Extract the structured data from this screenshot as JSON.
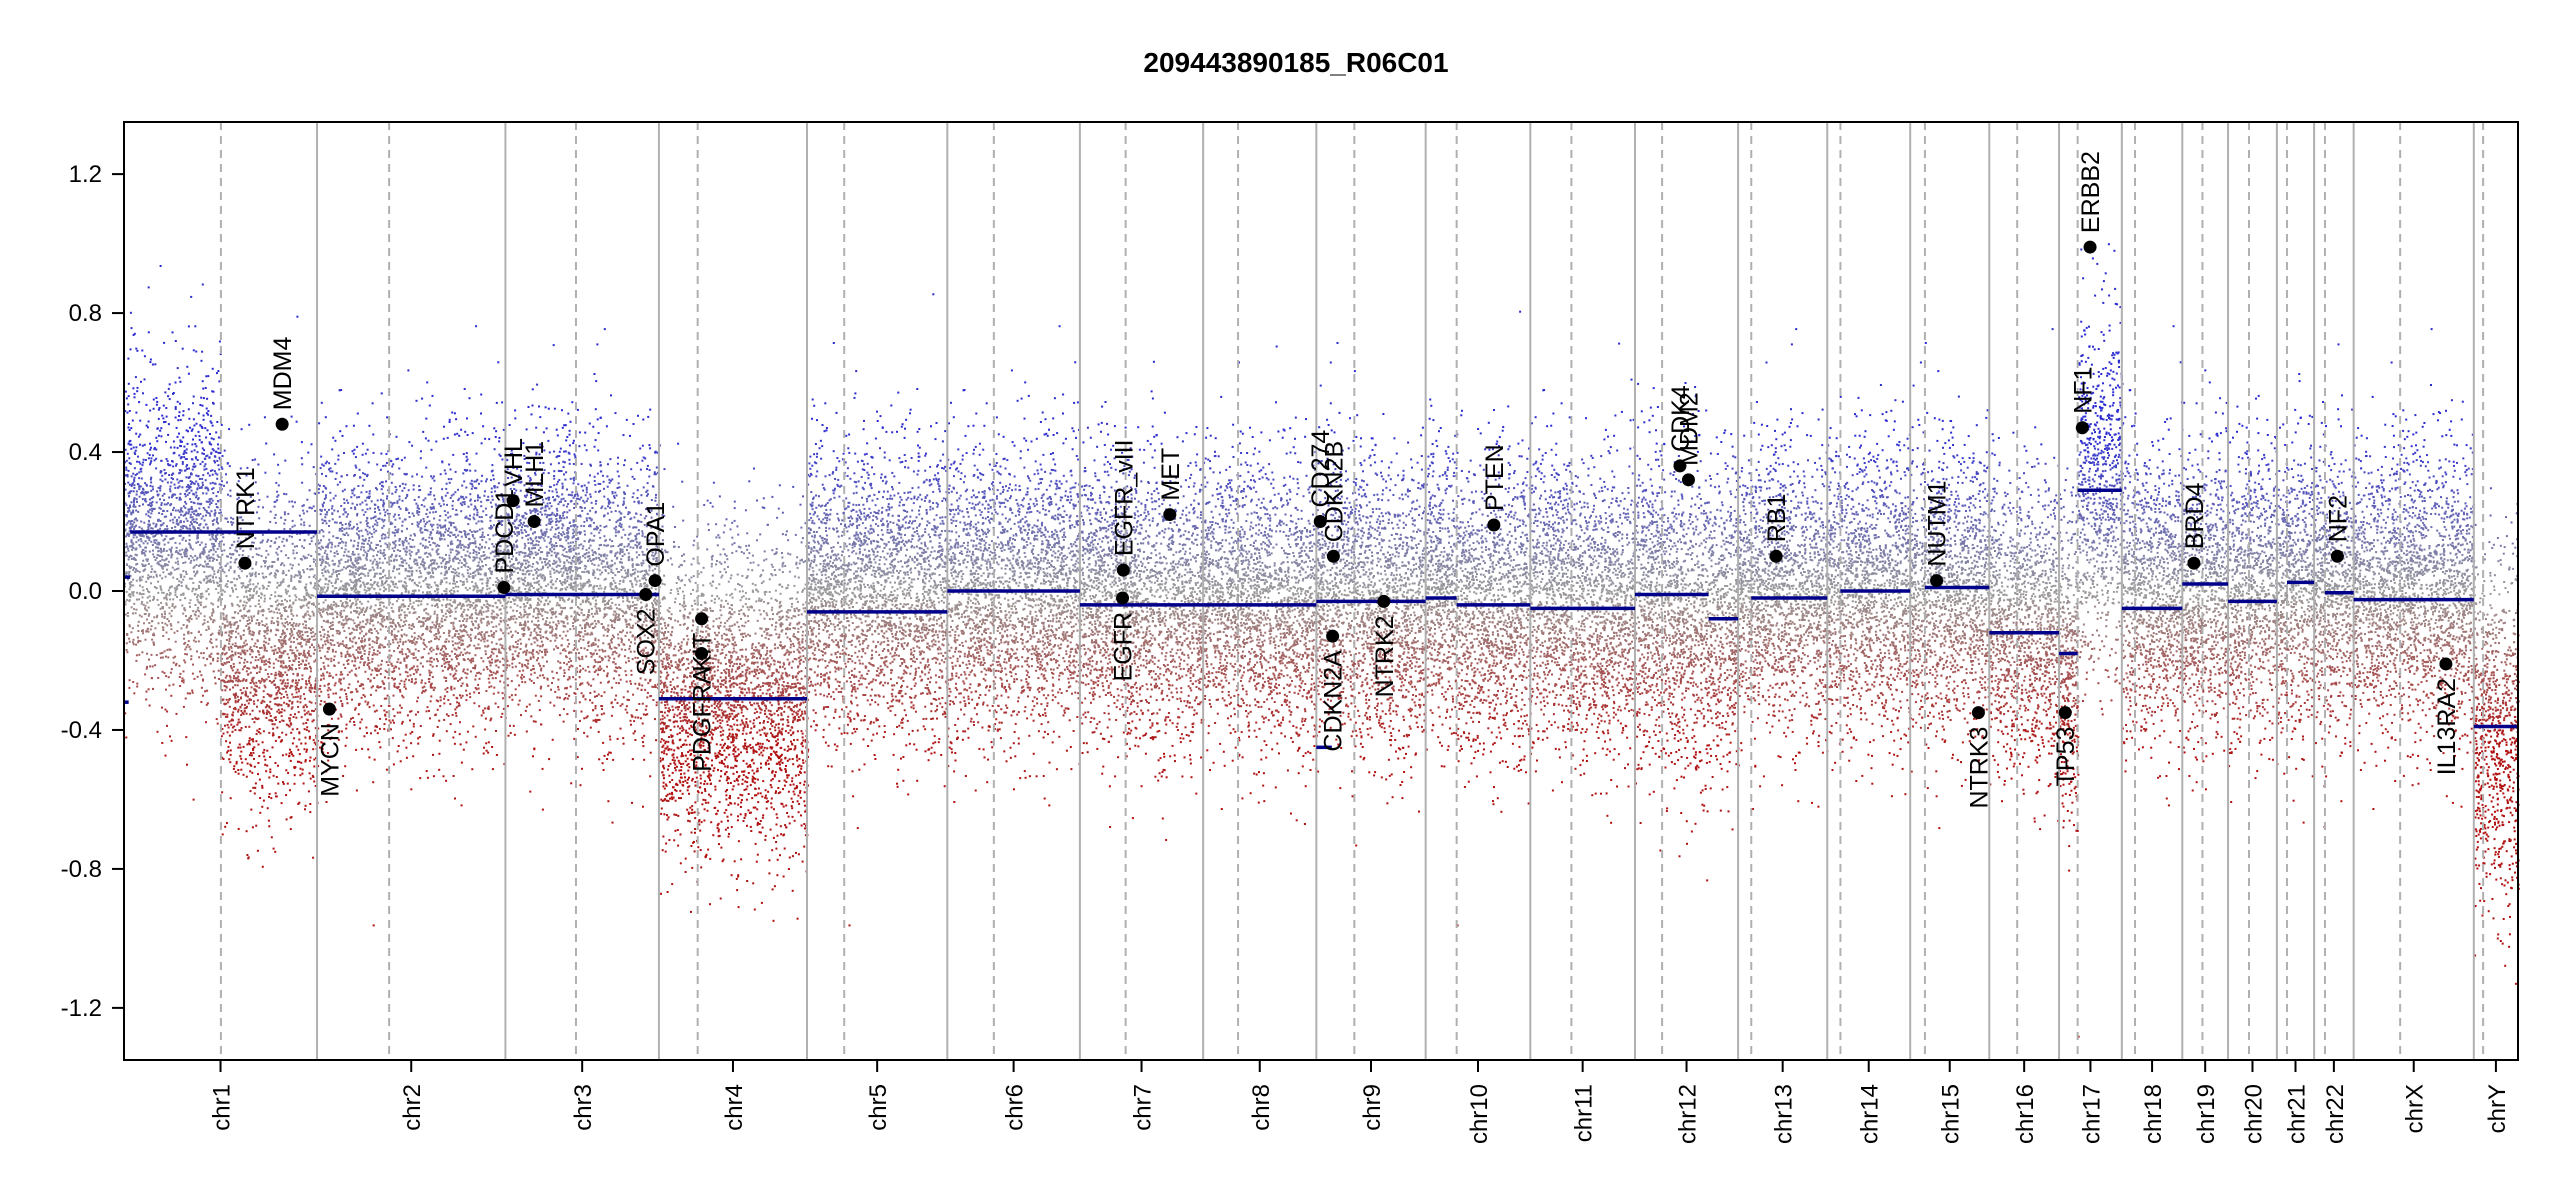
{
  "chart_data": {
    "type": "scatter",
    "title": "209443890185_R06C01",
    "xlabel": "",
    "ylabel": "",
    "ylim": [
      -1.35,
      1.35
    ],
    "yticks": [
      -1.2,
      -0.8,
      -0.4,
      0.0,
      0.4,
      0.8,
      1.2
    ],
    "ytick_labels": [
      "-1.2",
      "-0.8",
      "-0.4",
      "0.0",
      "0.4",
      "0.8",
      "1.2"
    ],
    "grid": false,
    "legend": "none",
    "colors": {
      "gain": "#2b2bd0",
      "loss": "#b01010",
      "neutral": "#9a9a9a",
      "segment": "#00008b",
      "gene": "#000000",
      "boundary": "#b0b0b0",
      "centromere": "#b0b0b0"
    },
    "chromosomes": [
      {
        "name": "chr1",
        "length": 249,
        "centromere": 125,
        "segments": [
          {
            "start": 0,
            "end": 6,
            "value": -0.32
          },
          {
            "start": 1,
            "end": 8,
            "value": 0.04
          },
          {
            "start": 8,
            "end": 249,
            "value": 0.17
          }
        ],
        "base": [
          0.15,
          -0.15
        ],
        "spread": 0.22
      },
      {
        "name": "chr2",
        "length": 243,
        "centromere": 93,
        "segments": [
          {
            "start": 0,
            "end": 243,
            "value": -0.015
          }
        ],
        "base": [
          0.0,
          0.0
        ],
        "spread": 0.2
      },
      {
        "name": "chr3",
        "length": 198,
        "centromere": 91,
        "segments": [
          {
            "start": 0,
            "end": 198,
            "value": -0.01
          }
        ],
        "base": [
          0.05,
          0.0
        ],
        "spread": 0.2
      },
      {
        "name": "chr4",
        "length": 191,
        "centromere": 50,
        "segments": [
          {
            "start": 0,
            "end": 191,
            "value": -0.31
          }
        ],
        "base": [
          -0.3,
          -0.3
        ],
        "spread": 0.22
      },
      {
        "name": "chr5",
        "length": 181,
        "centromere": 48,
        "segments": [
          {
            "start": 0,
            "end": 181,
            "value": -0.06
          }
        ],
        "base": [
          0.0,
          0.0
        ],
        "spread": 0.2
      },
      {
        "name": "chr6",
        "length": 171,
        "centromere": 60,
        "segments": [
          {
            "start": 0,
            "end": 171,
            "value": 0.0
          }
        ],
        "base": [
          0.0,
          0.0
        ],
        "spread": 0.2
      },
      {
        "name": "chr7",
        "length": 159,
        "centromere": 59,
        "segments": [
          {
            "start": 0,
            "end": 159,
            "value": -0.04
          }
        ],
        "base": [
          0.0,
          -0.05
        ],
        "spread": 0.2
      },
      {
        "name": "chr8",
        "length": 146,
        "centromere": 45,
        "segments": [
          {
            "start": 0,
            "end": 146,
            "value": -0.04
          }
        ],
        "base": [
          0.0,
          -0.05
        ],
        "spread": 0.2
      },
      {
        "name": "chr9",
        "length": 141,
        "centromere": 49,
        "segments": [
          {
            "start": 0,
            "end": 20,
            "value": -0.45
          },
          {
            "start": 0,
            "end": 141,
            "value": -0.03
          }
        ],
        "base": [
          0.0,
          -0.05
        ],
        "spread": 0.2
      },
      {
        "name": "chr10",
        "length": 135,
        "centromere": 40,
        "segments": [
          {
            "start": 0,
            "end": 40,
            "value": -0.02
          },
          {
            "start": 40,
            "end": 135,
            "value": -0.04
          }
        ],
        "base": [
          0.0,
          -0.05
        ],
        "spread": 0.2
      },
      {
        "name": "chr11",
        "length": 135,
        "centromere": 53,
        "segments": [
          {
            "start": 0,
            "end": 135,
            "value": -0.05
          }
        ],
        "base": [
          0.0,
          -0.05
        ],
        "spread": 0.2
      },
      {
        "name": "chr12",
        "length": 133,
        "centromere": 35,
        "segments": [
          {
            "start": 0,
            "end": 95,
            "value": -0.01
          },
          {
            "start": 95,
            "end": 133,
            "value": -0.08
          }
        ],
        "base": [
          0.0,
          -0.1
        ],
        "spread": 0.22
      },
      {
        "name": "chr13",
        "length": 115,
        "centromere": 17,
        "segments": [
          {
            "start": 17,
            "end": 115,
            "value": -0.02
          }
        ],
        "base": [
          0.0,
          0.0
        ],
        "spread": 0.2
      },
      {
        "name": "chr14",
        "length": 107,
        "centromere": 17,
        "segments": [
          {
            "start": 17,
            "end": 107,
            "value": 0.0
          }
        ],
        "base": [
          0.0,
          0.0
        ],
        "spread": 0.2
      },
      {
        "name": "chr15",
        "length": 102,
        "centromere": 19,
        "segments": [
          {
            "start": 19,
            "end": 102,
            "value": 0.01
          }
        ],
        "base": [
          0.0,
          0.0
        ],
        "spread": 0.2
      },
      {
        "name": "chr16",
        "length": 90,
        "centromere": 36,
        "segments": [
          {
            "start": 0,
            "end": 90,
            "value": -0.12
          }
        ],
        "base": [
          -0.1,
          -0.1
        ],
        "spread": 0.2
      },
      {
        "name": "chr17",
        "length": 81,
        "centromere": 24,
        "segments": [
          {
            "start": 0,
            "end": 24,
            "value": -0.18
          },
          {
            "start": 24,
            "end": 81,
            "value": 0.29
          }
        ],
        "base": [
          -0.2,
          0.3
        ],
        "spread": 0.24
      },
      {
        "name": "chr18",
        "length": 78,
        "centromere": 17,
        "segments": [
          {
            "start": 0,
            "end": 78,
            "value": -0.05
          }
        ],
        "base": [
          0.0,
          0.0
        ],
        "spread": 0.2
      },
      {
        "name": "chr19",
        "length": 59,
        "centromere": 26,
        "segments": [
          {
            "start": 0,
            "end": 59,
            "value": 0.02
          }
        ],
        "base": [
          0.0,
          0.0
        ],
        "spread": 0.2
      },
      {
        "name": "chr20",
        "length": 63,
        "centromere": 27,
        "segments": [
          {
            "start": 0,
            "end": 63,
            "value": -0.03
          }
        ],
        "base": [
          0.0,
          0.0
        ],
        "spread": 0.2
      },
      {
        "name": "chr21",
        "length": 48,
        "centromere": 13,
        "segments": [
          {
            "start": 13,
            "end": 48,
            "value": 0.025
          }
        ],
        "base": [
          0.0,
          0.0
        ],
        "spread": 0.2
      },
      {
        "name": "chr22",
        "length": 51,
        "centromere": 14,
        "segments": [
          {
            "start": 14,
            "end": 51,
            "value": -0.005
          }
        ],
        "base": [
          0.0,
          0.0
        ],
        "spread": 0.2
      },
      {
        "name": "chrX",
        "length": 155,
        "centromere": 60,
        "segments": [
          {
            "start": 0,
            "end": 155,
            "value": -0.025
          }
        ],
        "base": [
          0.0,
          0.0
        ],
        "spread": 0.2
      },
      {
        "name": "chrY",
        "length": 57,
        "centromere": 12,
        "segments": [
          {
            "start": 0,
            "end": 57,
            "value": -0.39
          }
        ],
        "base": [
          -0.4,
          -0.4
        ],
        "spread": 0.25
      }
    ],
    "genes": [
      {
        "name": "NTRK1",
        "chr": "chr1",
        "pos": 156,
        "value": 0.08,
        "label_side": "above"
      },
      {
        "name": "MDM4",
        "chr": "chr1",
        "pos": 204,
        "value": 0.48,
        "label_side": "above"
      },
      {
        "name": "MYCN",
        "chr": "chr2",
        "pos": 16,
        "value": -0.34,
        "label_side": "below"
      },
      {
        "name": "PDCD1",
        "chr": "chr2",
        "pos": 241,
        "value": 0.01,
        "label_side": "above"
      },
      {
        "name": "VHL",
        "chr": "chr3",
        "pos": 10,
        "value": 0.26,
        "label_side": "above"
      },
      {
        "name": "MLH1",
        "chr": "chr3",
        "pos": 37,
        "value": 0.2,
        "label_side": "above"
      },
      {
        "name": "SOX2",
        "chr": "chr3",
        "pos": 181,
        "value": -0.01,
        "label_side": "below"
      },
      {
        "name": "OPA1",
        "chr": "chr3",
        "pos": 193,
        "value": 0.03,
        "label_side": "above"
      },
      {
        "name": "PDGFRA",
        "chr": "chr4",
        "pos": 55,
        "value": -0.18,
        "label_side": "below"
      },
      {
        "name": "KIT",
        "chr": "chr4",
        "pos": 55,
        "value": -0.08,
        "label_side": "below"
      },
      {
        "name": "EGFR",
        "chr": "chr7",
        "pos": 55,
        "value": -0.02,
        "label_side": "below"
      },
      {
        "name": "EGFR_vIII",
        "chr": "chr7",
        "pos": 56,
        "value": 0.06,
        "label_side": "above"
      },
      {
        "name": "MET",
        "chr": "chr7",
        "pos": 116,
        "value": 0.22,
        "label_side": "above"
      },
      {
        "name": "CD274",
        "chr": "chr9",
        "pos": 5,
        "value": 0.2,
        "label_side": "above"
      },
      {
        "name": "CDKN2A",
        "chr": "chr9",
        "pos": 21,
        "value": -0.13,
        "label_side": "below"
      },
      {
        "name": "CDKN2B",
        "chr": "chr9",
        "pos": 22,
        "value": 0.1,
        "label_side": "above"
      },
      {
        "name": "NTRK2",
        "chr": "chr9",
        "pos": 87,
        "value": -0.03,
        "label_side": "below"
      },
      {
        "name": "PTEN",
        "chr": "chr10",
        "pos": 88,
        "value": 0.19,
        "label_side": "above"
      },
      {
        "name": "CDK4",
        "chr": "chr12",
        "pos": 58,
        "value": 0.36,
        "label_side": "above"
      },
      {
        "name": "MDM2",
        "chr": "chr12",
        "pos": 69,
        "value": 0.32,
        "label_side": "above"
      },
      {
        "name": "RB1",
        "chr": "chr13",
        "pos": 49,
        "value": 0.1,
        "label_side": "above"
      },
      {
        "name": "NUTM1",
        "chr": "chr15",
        "pos": 34,
        "value": 0.03,
        "label_side": "above"
      },
      {
        "name": "NTRK3",
        "chr": "chr15",
        "pos": 88,
        "value": -0.35,
        "label_side": "below"
      },
      {
        "name": "TP53",
        "chr": "chr17",
        "pos": 8,
        "value": -0.35,
        "label_side": "below"
      },
      {
        "name": "NF1",
        "chr": "chr17",
        "pos": 30,
        "value": 0.47,
        "label_side": "above"
      },
      {
        "name": "ERBB2",
        "chr": "chr17",
        "pos": 40,
        "value": 0.99,
        "label_side": "above"
      },
      {
        "name": "BRD4",
        "chr": "chr19",
        "pos": 15,
        "value": 0.08,
        "label_side": "above"
      },
      {
        "name": "NF2",
        "chr": "chr22",
        "pos": 30,
        "value": 0.1,
        "label_side": "above"
      },
      {
        "name": "IL13RA2",
        "chr": "chrX",
        "pos": 119,
        "value": -0.21,
        "label_side": "below"
      }
    ]
  }
}
